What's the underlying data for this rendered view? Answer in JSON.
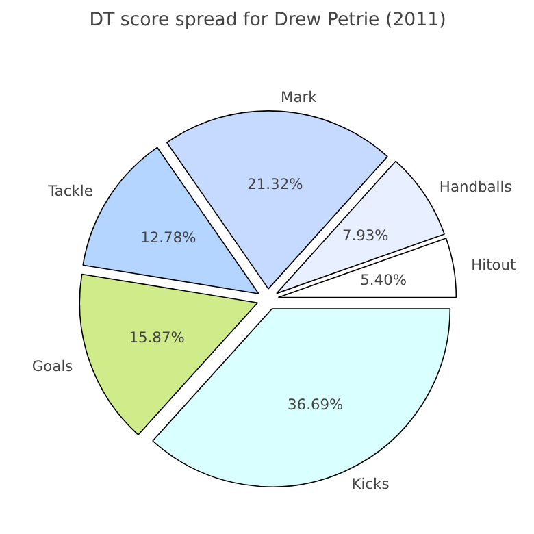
{
  "chart_data": {
    "type": "pie",
    "title": "DT score spread for Drew Petrie (2011)",
    "categories": [
      "Hitout",
      "Handballs",
      "Mark",
      "Tackle",
      "Goals",
      "Kicks"
    ],
    "values": [
      5.4,
      7.93,
      21.32,
      12.78,
      15.87,
      36.69
    ],
    "colors": [
      "#ffffff",
      "#e8f0ff",
      "#c6d9ff",
      "#b3d5ff",
      "#d0eb8a",
      "#daffff"
    ],
    "value_labels": [
      "5.40%",
      "7.93%",
      "21.32%",
      "12.78%",
      "15.87%",
      "36.69%"
    ]
  }
}
